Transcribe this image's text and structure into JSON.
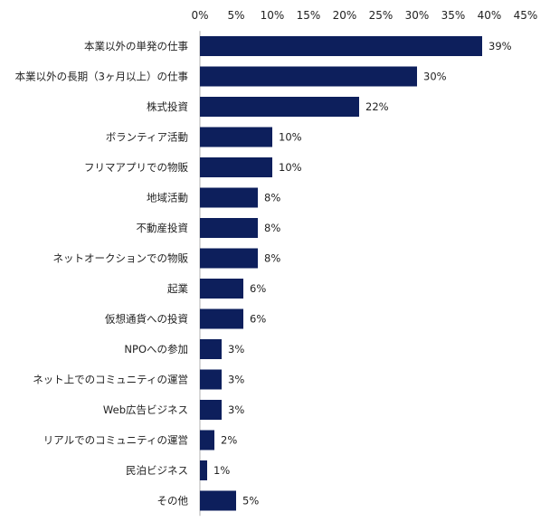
{
  "chart_data": {
    "type": "bar",
    "orientation": "horizontal",
    "categories": [
      "本業以外の単発の仕事",
      "本業以外の長期（3ヶ月以上）の仕事",
      "株式投資",
      "ボランティア活動",
      "フリマアプリでの物販",
      "地域活動",
      "不動産投資",
      "ネットオークションでの物販",
      "起業",
      "仮想通貨への投資",
      "NPOへの参加",
      "ネット上でのコミュニティの運営",
      "Web広告ビジネス",
      "リアルでのコミュニティの運営",
      "民泊ビジネス",
      "その他"
    ],
    "values": [
      39,
      30,
      22,
      10,
      10,
      8,
      8,
      8,
      6,
      6,
      3,
      3,
      3,
      2,
      1,
      5
    ],
    "value_labels": [
      "39%",
      "30%",
      "22%",
      "10%",
      "10%",
      "8%",
      "8%",
      "8%",
      "6%",
      "6%",
      "3%",
      "3%",
      "3%",
      "2%",
      "1%",
      "5%"
    ],
    "xlim": [
      0,
      45
    ],
    "x_ticks": [
      "0%",
      "5%",
      "10%",
      "15%",
      "20%",
      "25%",
      "30%",
      "35%",
      "40%",
      "45%"
    ],
    "x_axis_position": "top",
    "grid": false,
    "bar_color": "#0d1f5c"
  }
}
